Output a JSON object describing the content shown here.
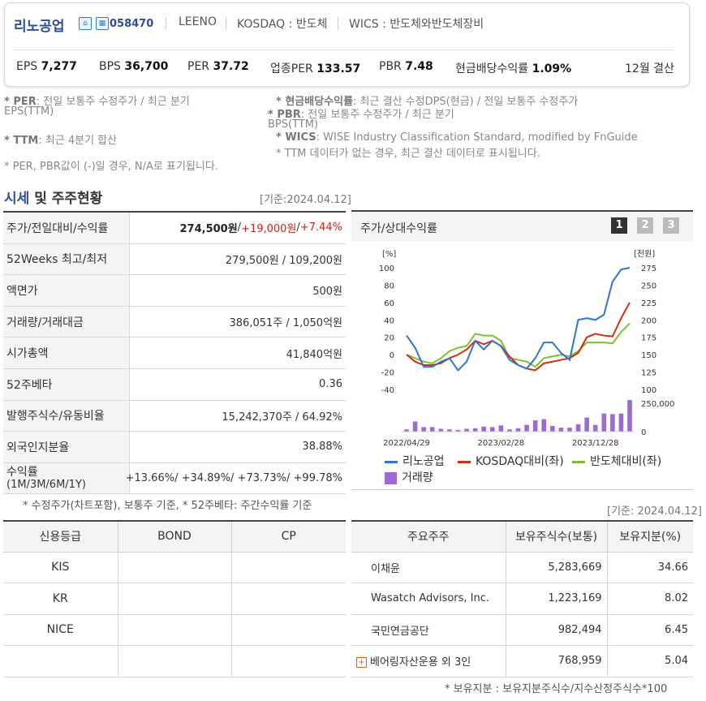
{
  "company": {
    "name": "리노공업",
    "code": "058470",
    "english_name": "LEENO",
    "market": "KOSDAQ : 반도체",
    "wics": "WICS : 반도체와반도체장비",
    "icon1": "home-icon",
    "icon2": "building-icon"
  },
  "metrics": [
    {
      "label": "EPS",
      "value": "7,277"
    },
    {
      "label": "BPS",
      "value": "36,700"
    },
    {
      "label": "PER",
      "value": "37.72"
    },
    {
      "label": "업종PER",
      "value": "133.57"
    },
    {
      "label": "PBR",
      "value": "7.48"
    },
    {
      "label": "현금배당수익률",
      "value": "1.09%"
    }
  ],
  "settlement": "12월 결산",
  "notes": {
    "per_key": "* PER",
    "per_text": ": 전일 보통주 수정주가 / 최근 분기",
    "per_text2": "EPS(TTM)",
    "ttm_key": "* TTM",
    "ttm_text": ": 최근 4분기 합산",
    "na_text": "* PER, PBR값이 (-)일 경우, N/A로 표기됩니다.",
    "div_key": "* 현금배당수익률",
    "div_text": ": 최근 결산 수정DPS(현금) / 전일 보통주 수정주가",
    "pbr_key": "* PBR",
    "pbr_text": ": 전일 보통주 수정주가 / 최근 분기",
    "pbr_text2": "BPS(TTM)",
    "wics_key": "* WICS",
    "wics_text": ": WISE Industry Classification Standard, modified by FnGuide",
    "ttm_note": "* TTM 데이터가 없는 경우, 최근 결산 데이터로 표시됩니다."
  },
  "section": {
    "title_a": "시세",
    "title_b": " 및 주주현황",
    "date": "[기준:2024.04.12]"
  },
  "price_table": [
    {
      "label": "주가/전일대비/수익률",
      "price": "274,500원",
      "sep1": " / ",
      "change": "+19,000원",
      "sep2": " / ",
      "rate": "+7.44%"
    },
    {
      "label": "52Weeks 최고/최저",
      "value": "279,500원 / 109,200원"
    },
    {
      "label": "액면가",
      "value": "500원"
    },
    {
      "label": "거래량/거래대금",
      "value": "386,051주 / 1,050억원"
    },
    {
      "label": "시가총액",
      "value": "41,840억원"
    },
    {
      "label": "52주베타",
      "value": "0.36"
    },
    {
      "label": "발행주식수/유동비율",
      "value": "15,242,370주 / 64.92%"
    },
    {
      "label": "외국인지분율",
      "value": "38.88%"
    },
    {
      "label": "수익률",
      "sublabel": "(1M/3M/6M/1Y)",
      "value": "+13.66%/ +34.89%/ +73.73%/ +99.78%"
    }
  ],
  "price_foot": "* 수정주가(차트포함), 보통주 기준, * 52주베타: 주간수익률 기준",
  "chart_panel": {
    "title": "주가/상대수익률",
    "pages": [
      "1",
      "2",
      "3"
    ],
    "active_page": "1"
  },
  "chart_data": {
    "type": "line",
    "y_left_unit": "[%]",
    "y_right_unit": "[천원]",
    "y_left_ticks": [
      "100",
      "80",
      "60",
      "40",
      "20",
      "0",
      "-20",
      "-40"
    ],
    "y_right_ticks": [
      "275",
      "250",
      "225",
      "200",
      "175",
      "150",
      "125",
      "100"
    ],
    "volume_tick": "250,000",
    "volume_zero": "0",
    "ylim_left": [
      -40,
      100
    ],
    "x_ticks": [
      "2022/04/29",
      "2023/02/28",
      "2023/12/28"
    ],
    "x": [
      "2022/04/29",
      "2022/05/27",
      "2022/06/24",
      "2022/07/22",
      "2022/08/19",
      "2022/09/16",
      "2022/10/14",
      "2022/11/11",
      "2022/12/09",
      "2023/01/06",
      "2023/02/03",
      "2023/03/03",
      "2023/03/31",
      "2023/04/28",
      "2023/05/26",
      "2023/06/23",
      "2023/07/21",
      "2023/08/18",
      "2023/09/15",
      "2023/10/13",
      "2023/11/10",
      "2023/12/08",
      "2024/01/05",
      "2024/02/02",
      "2024/03/01",
      "2024/03/29",
      "2024/04/12"
    ],
    "series": [
      {
        "name": "리노공업",
        "color": "#2f74d0",
        "values": [
          22,
          8,
          -14,
          -14,
          -8,
          -4,
          -18,
          -8,
          16,
          6,
          16,
          10,
          -6,
          -12,
          -16,
          -4,
          14,
          14,
          2,
          -6,
          40,
          42,
          40,
          46,
          84,
          98,
          100
        ]
      },
      {
        "name": "KOSDAQ대비(좌)",
        "color": "#d03010",
        "values": [
          0,
          -8,
          -12,
          -12,
          -10,
          -4,
          0,
          6,
          16,
          12,
          16,
          10,
          -2,
          -12,
          -16,
          -18,
          -10,
          -8,
          -6,
          -4,
          2,
          20,
          24,
          22,
          21,
          42,
          60
        ]
      },
      {
        "name": "반도체대비(좌)",
        "color": "#7cc22c",
        "values": [
          0,
          -4,
          -8,
          -10,
          -4,
          4,
          8,
          10,
          24,
          22,
          22,
          16,
          -4,
          -6,
          -8,
          -14,
          -4,
          -2,
          0,
          -2,
          4,
          14,
          14,
          14,
          13,
          26,
          36
        ]
      }
    ],
    "volume": {
      "name": "거래량",
      "color": "#9b6bcf",
      "values": [
        20000,
        90000,
        40000,
        40000,
        25000,
        20000,
        15000,
        25000,
        30000,
        45000,
        40000,
        55000,
        20000,
        30000,
        60000,
        100000,
        110000,
        50000,
        35000,
        35000,
        65000,
        125000,
        60000,
        160000,
        155000,
        160000,
        280000
      ]
    }
  },
  "credit_table": {
    "headers": [
      "신용등급",
      "BOND",
      "CP"
    ],
    "rows": [
      "KIS",
      "KR",
      "NICE",
      ""
    ]
  },
  "shareholder_table": {
    "date": "[기준: 2024.04.12]",
    "headers": [
      "주요주주",
      "보유주식수(보통)",
      "보유지분(%)"
    ],
    "rows": [
      {
        "name": "이채윤",
        "shares": "5,283,669",
        "pct": "34.66"
      },
      {
        "name": "Wasatch Advisors, Inc.",
        "shares": "1,223,169",
        "pct": "8.02"
      },
      {
        "name": "국민연금공단",
        "shares": "982,494",
        "pct": "6.45"
      },
      {
        "name": "베어링자산운용 외 3인",
        "shares": "768,959",
        "pct": "5.04"
      }
    ],
    "expand_icon": "plus-icon",
    "foot": "* 보유지분 : 보유지분주식수/지수산정주식수*100"
  }
}
